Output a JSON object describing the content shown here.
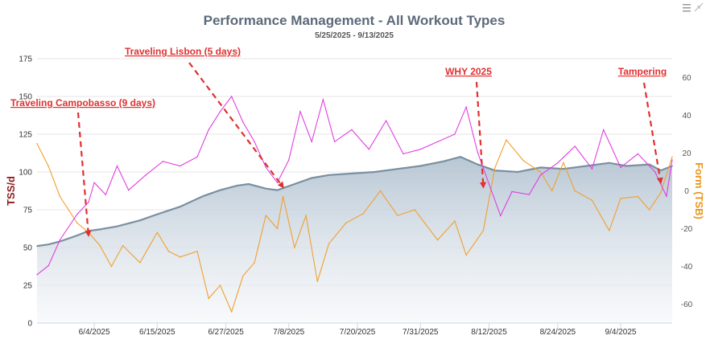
{
  "chart_data": {
    "type": "line",
    "title": "Performance Management - All Workout Types",
    "subtitle": "5/25/2025 - 9/13/2025",
    "ylabel": "TSS/d",
    "y2label": "Form (TSB)",
    "ylim": [
      0,
      175
    ],
    "y2lim": [
      -70,
      70
    ],
    "yticks": [
      0,
      25,
      50,
      75,
      100,
      125,
      150,
      175
    ],
    "y2ticks": [
      -60,
      -40,
      -20,
      0,
      20,
      40,
      60
    ],
    "x_start": "5/25/2025",
    "x_end": "9/13/2025",
    "xticks": [
      "6/4/2025",
      "6/15/2025",
      "6/27/2025",
      "7/8/2025",
      "7/20/2025",
      "7/31/2025",
      "8/12/2025",
      "8/24/2025",
      "9/4/2025"
    ],
    "grid": true,
    "colors": {
      "fitness": "#7a8fa0",
      "fitness_fill_top": "#b4c4d2",
      "fatigue": "#e040e0",
      "form": "#f0a030",
      "annotation": "#e03030"
    },
    "series": [
      {
        "axis": "left",
        "style": "area",
        "points": [
          [
            "5/25/2025",
            51
          ],
          [
            "5/27/2025",
            52
          ],
          [
            "5/29/2025",
            54
          ],
          [
            "6/1/2025",
            58
          ],
          [
            "6/3/2025",
            61
          ],
          [
            "6/5/2025",
            62
          ],
          [
            "6/8/2025",
            64
          ],
          [
            "6/12/2025",
            68
          ],
          [
            "6/15/2025",
            72
          ],
          [
            "6/19/2025",
            77
          ],
          [
            "6/23/2025",
            84
          ],
          [
            "6/26/2025",
            88
          ],
          [
            "6/29/2025",
            91
          ],
          [
            "7/1/2025",
            92
          ],
          [
            "7/4/2025",
            89
          ],
          [
            "7/6/2025",
            88
          ],
          [
            "7/9/2025",
            92
          ],
          [
            "7/12/2025",
            96
          ],
          [
            "7/15/2025",
            98
          ],
          [
            "7/19/2025",
            99
          ],
          [
            "7/23/2025",
            100
          ],
          [
            "7/27/2025",
            102
          ],
          [
            "7/31/2025",
            104
          ],
          [
            "8/4/2025",
            107
          ],
          [
            "8/7/2025",
            110
          ],
          [
            "8/10/2025",
            105
          ],
          [
            "8/13/2025",
            101
          ],
          [
            "8/17/2025",
            100
          ],
          [
            "8/21/2025",
            103
          ],
          [
            "8/25/2025",
            102
          ],
          [
            "8/29/2025",
            104
          ],
          [
            "9/2/2025",
            106
          ],
          [
            "9/5/2025",
            104
          ],
          [
            "9/9/2025",
            105
          ],
          [
            "9/11/2025",
            101
          ],
          [
            "9/13/2025",
            104
          ]
        ]
      },
      {
        "axis": "left",
        "style": "line",
        "points": [
          [
            "5/25/2025",
            32
          ],
          [
            "5/27/2025",
            38
          ],
          [
            "5/29/2025",
            55
          ],
          [
            "6/1/2025",
            72
          ],
          [
            "6/3/2025",
            80
          ],
          [
            "6/4/2025",
            93
          ],
          [
            "6/6/2025",
            85
          ],
          [
            "6/8/2025",
            104
          ],
          [
            "6/10/2025",
            88
          ],
          [
            "6/13/2025",
            98
          ],
          [
            "6/16/2025",
            107
          ],
          [
            "6/19/2025",
            104
          ],
          [
            "6/22/2025",
            110
          ],
          [
            "6/24/2025",
            128
          ],
          [
            "6/26/2025",
            140
          ],
          [
            "6/28/2025",
            150
          ],
          [
            "6/30/2025",
            133
          ],
          [
            "7/2/2025",
            120
          ],
          [
            "7/4/2025",
            103
          ],
          [
            "7/6/2025",
            93
          ],
          [
            "7/8/2025",
            108
          ],
          [
            "7/10/2025",
            140
          ],
          [
            "7/12/2025",
            120
          ],
          [
            "7/14/2025",
            148
          ],
          [
            "7/16/2025",
            120
          ],
          [
            "7/19/2025",
            128
          ],
          [
            "7/22/2025",
            115
          ],
          [
            "7/25/2025",
            134
          ],
          [
            "7/28/2025",
            112
          ],
          [
            "7/31/2025",
            115
          ],
          [
            "8/3/2025",
            120
          ],
          [
            "8/6/2025",
            125
          ],
          [
            "8/8/2025",
            143
          ],
          [
            "8/10/2025",
            113
          ],
          [
            "8/12/2025",
            92
          ],
          [
            "8/14/2025",
            71
          ],
          [
            "8/16/2025",
            87
          ],
          [
            "8/19/2025",
            85
          ],
          [
            "8/21/2025",
            98
          ],
          [
            "8/24/2025",
            106
          ],
          [
            "8/27/2025",
            117
          ],
          [
            "8/30/2025",
            102
          ],
          [
            "9/1/2025",
            128
          ],
          [
            "9/4/2025",
            103
          ],
          [
            "9/7/2025",
            112
          ],
          [
            "9/10/2025",
            100
          ],
          [
            "9/12/2025",
            84
          ],
          [
            "9/13/2025",
            108
          ]
        ]
      },
      {
        "axis": "right",
        "style": "line",
        "points": [
          [
            "5/25/2025",
            25
          ],
          [
            "5/27/2025",
            13
          ],
          [
            "5/29/2025",
            -3
          ],
          [
            "6/1/2025",
            -17
          ],
          [
            "6/3/2025",
            -22
          ],
          [
            "6/5/2025",
            -29
          ],
          [
            "6/7/2025",
            -40
          ],
          [
            "6/9/2025",
            -29
          ],
          [
            "6/12/2025",
            -38
          ],
          [
            "6/15/2025",
            -22
          ],
          [
            "6/17/2025",
            -32
          ],
          [
            "6/19/2025",
            -35
          ],
          [
            "6/22/2025",
            -32
          ],
          [
            "6/24/2025",
            -57
          ],
          [
            "6/26/2025",
            -50
          ],
          [
            "6/28/2025",
            -64
          ],
          [
            "6/30/2025",
            -45
          ],
          [
            "7/2/2025",
            -38
          ],
          [
            "7/4/2025",
            -13
          ],
          [
            "7/6/2025",
            -20
          ],
          [
            "7/7/2025",
            -3
          ],
          [
            "7/9/2025",
            -30
          ],
          [
            "7/11/2025",
            -13
          ],
          [
            "7/13/2025",
            -48
          ],
          [
            "7/15/2025",
            -28
          ],
          [
            "7/18/2025",
            -17
          ],
          [
            "7/21/2025",
            -12
          ],
          [
            "7/24/2025",
            0
          ],
          [
            "7/27/2025",
            -13
          ],
          [
            "7/30/2025",
            -10
          ],
          [
            "8/3/2025",
            -26
          ],
          [
            "8/6/2025",
            -16
          ],
          [
            "8/8/2025",
            -34
          ],
          [
            "8/11/2025",
            -21
          ],
          [
            "8/13/2025",
            12
          ],
          [
            "8/15/2025",
            27
          ],
          [
            "8/18/2025",
            16
          ],
          [
            "8/21/2025",
            10
          ],
          [
            "8/23/2025",
            0
          ],
          [
            "8/25/2025",
            15
          ],
          [
            "8/27/2025",
            0
          ],
          [
            "8/30/2025",
            -5
          ],
          [
            "9/2/2025",
            -21
          ],
          [
            "9/4/2025",
            -4
          ],
          [
            "9/7/2025",
            -3
          ],
          [
            "9/9/2025",
            -10
          ],
          [
            "9/11/2025",
            -1
          ],
          [
            "9/13/2025",
            18
          ]
        ]
      }
    ],
    "annotations": [
      {
        "text": "Traveling Campobasso (9 days)",
        "target": [
          "6/3/2025",
          58
        ]
      },
      {
        "text": "Traveling Lisbon (5 days)",
        "target": [
          "7/7/2025",
          90
        ]
      },
      {
        "text": "WHY 2025",
        "target": [
          "8/11/2025",
          90
        ]
      },
      {
        "text": "Tampering",
        "target": [
          "9/11/2025",
          93
        ]
      }
    ]
  },
  "toolbar": {
    "menu_icon": "hamburger-menu-icon",
    "expand_icon": "expand-icon"
  }
}
